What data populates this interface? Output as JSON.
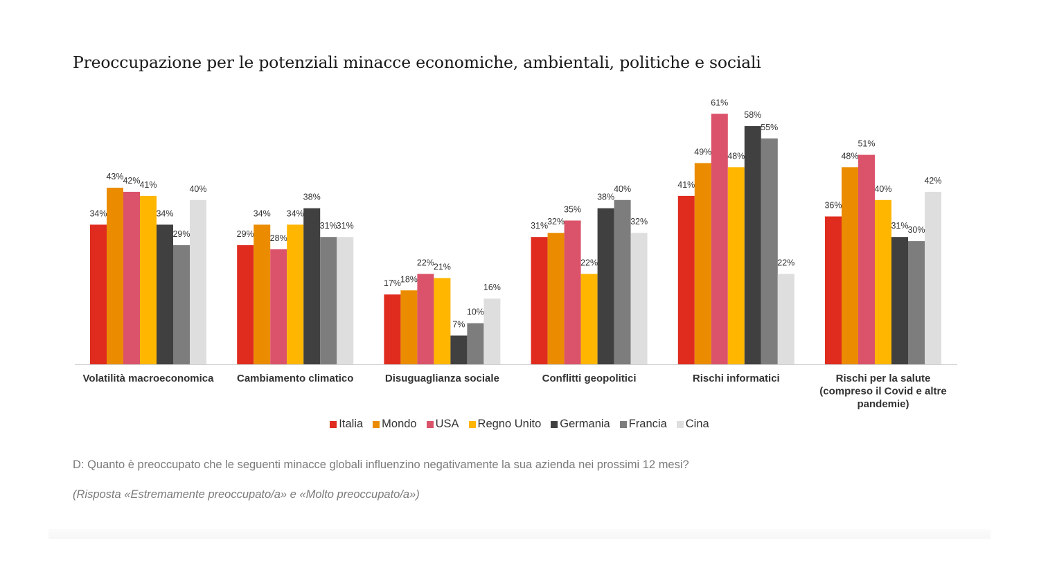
{
  "chart_data": {
    "type": "bar",
    "title": "Preoccupazione per le potenziali minacce economiche, ambientali, politiche e sociali",
    "categories": [
      [
        "Volatilità macroeconomica"
      ],
      [
        "Cambiamento climatico"
      ],
      [
        "Disuguaglianza sociale"
      ],
      [
        "Conflitti geopolitici"
      ],
      [
        "Rischi informatici"
      ],
      [
        "Rischi per la salute",
        "(compreso il Covid e altre",
        "pandemie)"
      ]
    ],
    "series": [
      {
        "name": "Italia",
        "color": "#df2c1f",
        "values": [
          34,
          29,
          17,
          31,
          41,
          36
        ]
      },
      {
        "name": "Mondo",
        "color": "#eb8c00",
        "values": [
          43,
          34,
          18,
          32,
          49,
          48
        ]
      },
      {
        "name": "USA",
        "color": "#db536a",
        "values": [
          42,
          28,
          22,
          35,
          61,
          51
        ]
      },
      {
        "name": "Regno Unito",
        "color": "#ffb600",
        "values": [
          41,
          34,
          21,
          22,
          48,
          40
        ]
      },
      {
        "name": "Germania",
        "color": "#404041",
        "values": [
          34,
          38,
          7,
          38,
          58,
          31
        ]
      },
      {
        "name": "Francia",
        "color": "#7d7d7d",
        "values": [
          29,
          31,
          10,
          40,
          55,
          30
        ]
      },
      {
        "name": "Cina",
        "color": "#dedede",
        "values": [
          40,
          31,
          16,
          32,
          22,
          42
        ]
      }
    ],
    "value_suffix": "%",
    "ylim": [
      0,
      64
    ],
    "grid": false,
    "legend_position": "bottom-center"
  },
  "footer": {
    "question": "D: Quanto è preoccupato che le seguenti minacce globali influenzino negativamente la sua azienda nei prossimi 12 mesi?",
    "note": "(Risposta «Estremamente preoccupato/a» e «Molto preoccupato/a»)"
  }
}
